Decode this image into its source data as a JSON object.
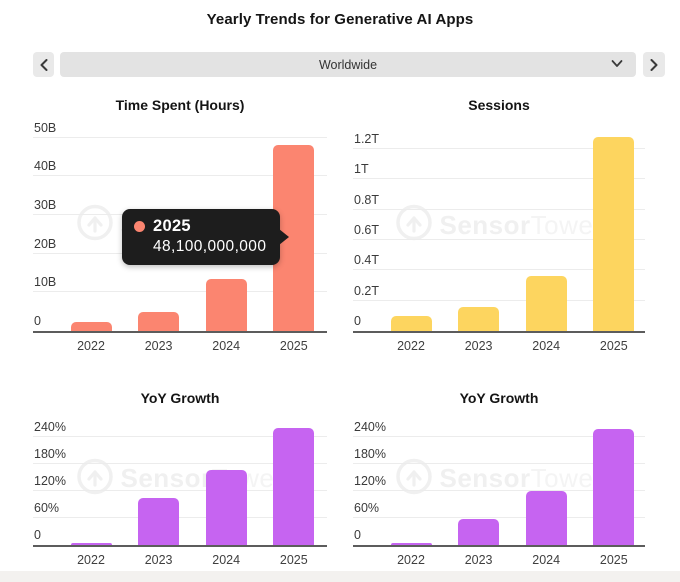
{
  "header": {
    "title": "Yearly Trends for Generative AI Apps"
  },
  "selector": {
    "value": "Worldwide",
    "prev_icon": "chevron-left",
    "next_icon": "chevron-right",
    "expand_icon": "chevron-down"
  },
  "watermark": {
    "brand_bold": "Sensor",
    "brand_light": "Tower"
  },
  "tooltip": {
    "year": "2025",
    "value": "48,100,000,000",
    "dot_color": "#FB8570",
    "background": "#1d1d1d"
  },
  "colors": {
    "time_spent_bar": "#FB8570",
    "sessions_bar": "#FDD55F",
    "growth_bar": "#C664F1",
    "axis": "#5c5c5c",
    "gridline": "#ececec"
  },
  "chart_data": [
    {
      "type": "bar",
      "title": "Time Spent (Hours)",
      "categories": [
        "2022",
        "2023",
        "2024",
        "2025"
      ],
      "values": [
        2400000000,
        5000000000,
        13400000000,
        48100000000
      ],
      "values_plot_units": [
        2.4,
        5.0,
        13.4,
        48.1
      ],
      "unit": "billions of hours",
      "bar_color": "#FB8570",
      "yticks": [
        {
          "v": 0,
          "label": "0"
        },
        {
          "v": 10,
          "label": "10B"
        },
        {
          "v": 20,
          "label": "20B"
        },
        {
          "v": 30,
          "label": "30B"
        },
        {
          "v": 40,
          "label": "40B"
        },
        {
          "v": 50,
          "label": "50B"
        }
      ],
      "ylim": [
        0,
        53
      ],
      "grid": true,
      "legend": "none"
    },
    {
      "type": "bar",
      "title": "Sessions",
      "categories": [
        "2022",
        "2023",
        "2024",
        "2025"
      ],
      "values": [
        100000000000,
        160000000000,
        360000000000,
        1280000000000
      ],
      "values_plot_units": [
        0.1,
        0.16,
        0.36,
        1.28
      ],
      "unit": "trillions of sessions",
      "bar_color": "#FDD55F",
      "yticks": [
        {
          "v": 0,
          "label": "0"
        },
        {
          "v": 0.2,
          "label": "0.2T"
        },
        {
          "v": 0.4,
          "label": "0.4T"
        },
        {
          "v": 0.6,
          "label": "0.6T"
        },
        {
          "v": 0.8,
          "label": "0.8T"
        },
        {
          "v": 1.0,
          "label": "1T"
        },
        {
          "v": 1.2,
          "label": "1.2T"
        }
      ],
      "ylim": [
        0,
        1.35
      ],
      "grid": true,
      "legend": "none"
    },
    {
      "type": "bar",
      "title": "YoY Growth",
      "categories": [
        "2022",
        "2023",
        "2024",
        "2025"
      ],
      "values": [
        2,
        105,
        167,
        260
      ],
      "values_plot_units": [
        2,
        105,
        167,
        260
      ],
      "unit": "percent (time spent YoY growth)",
      "bar_color": "#C664F1",
      "yticks": [
        {
          "v": 0,
          "label": "0"
        },
        {
          "v": 60,
          "label": "60%"
        },
        {
          "v": 120,
          "label": "120%"
        },
        {
          "v": 180,
          "label": "180%"
        },
        {
          "v": 240,
          "label": "240%"
        }
      ],
      "ylim": [
        0,
        287
      ],
      "grid": true,
      "legend": "none"
    },
    {
      "type": "bar",
      "title": "YoY Growth",
      "categories": [
        "2022",
        "2023",
        "2024",
        "2025"
      ],
      "values": [
        2,
        58,
        121,
        258
      ],
      "values_plot_units": [
        2,
        58,
        121,
        258
      ],
      "unit": "percent (sessions YoY growth)",
      "bar_color": "#C664F1",
      "yticks": [
        {
          "v": 0,
          "label": "0"
        },
        {
          "v": 60,
          "label": "60%"
        },
        {
          "v": 120,
          "label": "120%"
        },
        {
          "v": 180,
          "label": "180%"
        },
        {
          "v": 240,
          "label": "240%"
        }
      ],
      "ylim": [
        0,
        287
      ],
      "grid": true,
      "legend": "none"
    }
  ]
}
